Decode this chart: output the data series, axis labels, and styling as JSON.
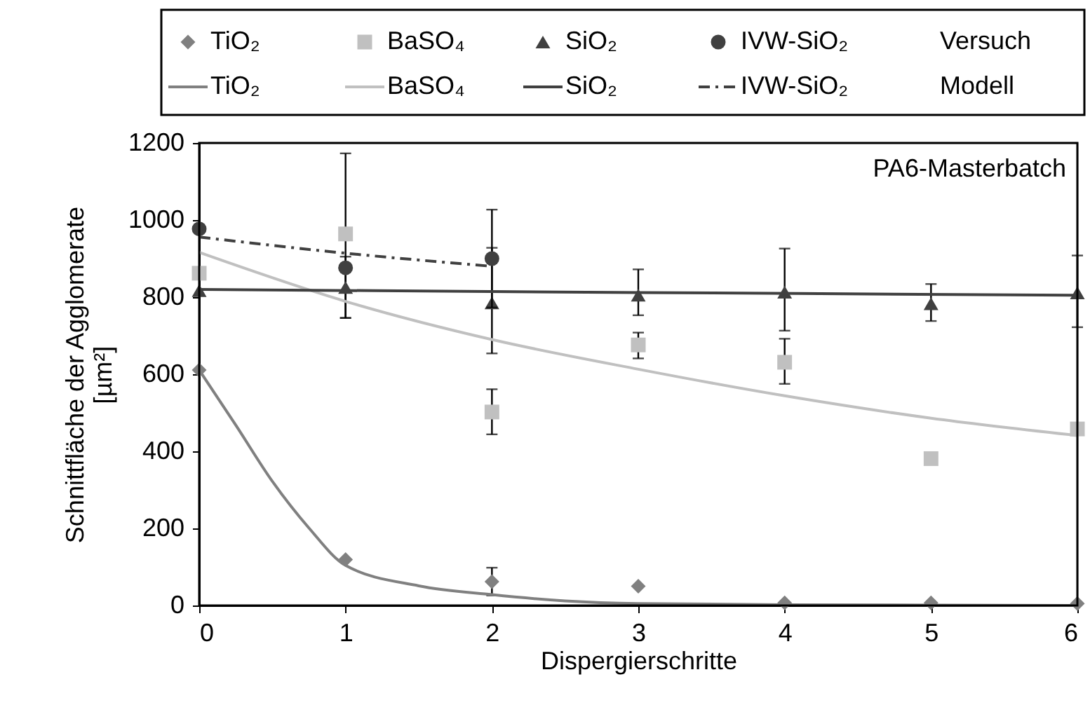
{
  "chart_data": {
    "type": "scatter",
    "xlabel": "Dispergierschritte",
    "ylabel": "Schnittfläche der Agglomerate\n[µm²]",
    "annotations": [
      "PA6-Masterbatch",
      "Versuch",
      "Modell"
    ],
    "xlim": [
      0,
      6
    ],
    "xticks": [
      0,
      1,
      2,
      3,
      4,
      5,
      6
    ],
    "ylim": [
      0,
      1200
    ],
    "yticks": [
      0,
      200,
      400,
      600,
      800,
      1000,
      1200
    ],
    "grid": false,
    "legend": "top",
    "series": [
      {
        "name": "TiO₂",
        "type": "scatter",
        "marker": "diamond",
        "color": "#808080",
        "x": [
          0,
          1,
          2,
          3,
          4,
          5,
          6
        ],
        "values": [
          611,
          119,
          62,
          50,
          7,
          7,
          5
        ],
        "errors": [
          null,
          null,
          [
            26,
            98
          ],
          null,
          null,
          null,
          null
        ]
      },
      {
        "name": "BaSO₄",
        "type": "scatter",
        "marker": "square",
        "color": "#c0c0c0",
        "x": [
          0,
          1,
          2,
          3,
          4,
          5,
          6
        ],
        "values": [
          862,
          964,
          502,
          676,
          631,
          381,
          458
        ],
        "errors": [
          null,
          [
            746,
            1173
          ],
          [
            444,
            561
          ],
          [
            641,
            708
          ],
          [
            575,
            692
          ],
          null,
          null
        ]
      },
      {
        "name": "SiO₂",
        "type": "scatter",
        "marker": "triangle",
        "color": "#404040",
        "x": [
          0,
          1,
          2,
          3,
          4,
          5,
          6
        ],
        "values": [
          817,
          825,
          785,
          805,
          813,
          783,
          811
        ],
        "errors": [
          null,
          [
            746,
            905
          ],
          [
            654,
            928
          ],
          [
            753,
            872
          ],
          [
            713,
            926
          ],
          [
            738,
            834
          ],
          [
            722,
            908
          ]
        ]
      },
      {
        "name": "IVW-SiO₂",
        "type": "scatter",
        "marker": "circle",
        "color": "#404040",
        "x": [
          0,
          1,
          2
        ],
        "values": [
          977,
          876,
          900
        ],
        "errors": [
          null,
          null,
          [
            773,
            1027
          ]
        ]
      },
      {
        "name": "TiO₂",
        "type": "line",
        "line_style": "solid",
        "color": "#808080",
        "x": [
          0,
          0.25,
          0.5,
          0.75,
          1,
          1.5,
          2,
          2.5,
          3,
          4,
          5,
          6
        ],
        "values": [
          611,
          468,
          322,
          201,
          104,
          51,
          28,
          12,
          5,
          2,
          1,
          0
        ]
      },
      {
        "name": "BaSO₄",
        "type": "line",
        "line_style": "solid",
        "color": "#c0c0c0",
        "x": [
          0,
          1,
          2,
          3,
          4,
          5,
          6
        ],
        "values": [
          916,
          789,
          690,
          613,
          544,
          486,
          441
        ]
      },
      {
        "name": "SiO₂",
        "type": "line",
        "line_style": "solid",
        "color": "#404040",
        "x": [
          0,
          3,
          6
        ],
        "values": [
          820,
          812,
          805
        ]
      },
      {
        "name": "IVW-SiO₂",
        "type": "line",
        "line_style": "dashdot",
        "color": "#404040",
        "x": [
          0,
          1,
          2
        ],
        "values": [
          956,
          914,
          880
        ]
      }
    ]
  }
}
